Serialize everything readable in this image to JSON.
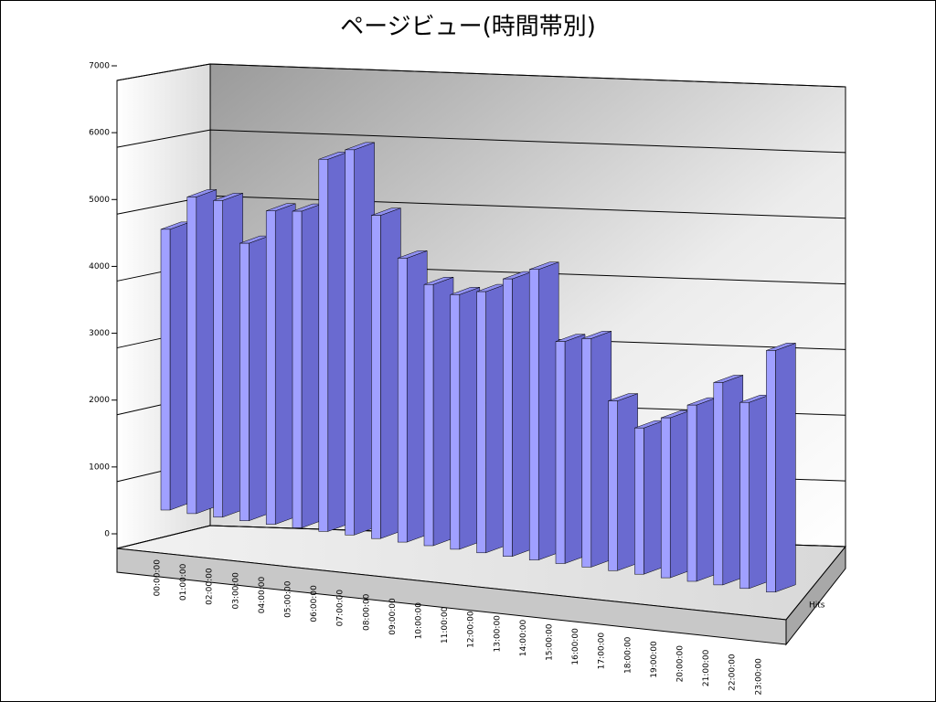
{
  "chart_data": {
    "type": "bar3d",
    "title": "ページビュー(時間帯別)",
    "categories": [
      "00:00:00",
      "01:00:00",
      "02:00:00",
      "03:00:00",
      "04:00:00",
      "05:00:00",
      "06:00:00",
      "07:00:00",
      "08:00:00",
      "09:00:00",
      "10:00:00",
      "11:00:00",
      "12:00:00",
      "13:00:00",
      "14:00:00",
      "15:00:00",
      "16:00:00",
      "17:00:00",
      "18:00:00",
      "19:00:00",
      "20:00:00",
      "21:00:00",
      "22:00:00",
      "23:00:00"
    ],
    "series": [
      {
        "name": "Hits",
        "color": "#6a6ad0",
        "values": [
          4300,
          4850,
          4850,
          4250,
          4800,
          4850,
          5700,
          5900,
          4950,
          4350,
          4000,
          3900,
          4000,
          4250,
          4450,
          3400,
          3500,
          2600,
          2240,
          2450,
          2700,
          3100,
          2850,
          3700
        ]
      }
    ],
    "ylim": [
      0,
      7000
    ],
    "yticks": [
      0,
      1000,
      2000,
      3000,
      4000,
      5000,
      6000,
      7000
    ],
    "grid": true
  }
}
